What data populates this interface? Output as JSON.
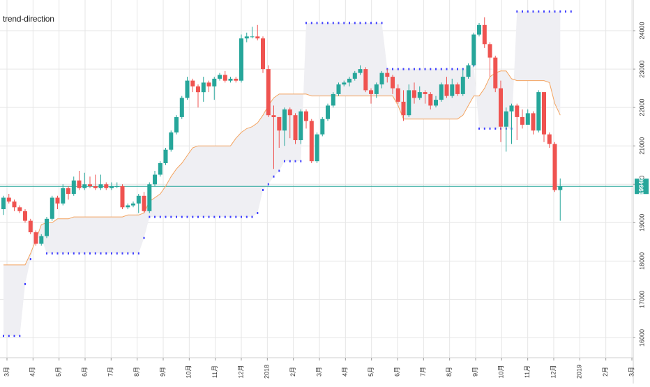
{
  "chart_data": {
    "type": "candlestick",
    "title": "trend-direction",
    "colors": {
      "up": "#26a69a",
      "down": "#ef5350",
      "trend_line": "#f4a460",
      "stop_dots": "#3d3dff",
      "band_fill": "#efeff3",
      "price_line": "#26a69a",
      "grid": "#e6e6e6"
    },
    "y_axis": {
      "ticks": [
        "16000",
        "17000",
        "18000",
        "19000",
        "20000",
        "21000",
        "22000",
        "23000",
        "24000"
      ],
      "range": [
        15500,
        24800
      ],
      "position": "right"
    },
    "x_axis": {
      "labels": [
        "3月",
        "4月",
        "5月",
        "6月",
        "7月",
        "8月",
        "9月",
        "10月",
        "11月",
        "12月",
        "2018",
        "2月",
        "3月",
        "4月",
        "5月",
        "6月",
        "7月",
        "8月",
        "9月",
        "10月",
        "11月",
        "12月",
        "2019",
        "2月",
        "3月"
      ]
    },
    "last_price": "19946",
    "last_price_value": 19946,
    "candles": [
      [
        19350,
        19650,
        19700,
        19200
      ],
      [
        19650,
        19550,
        19750,
        19500
      ],
      [
        19550,
        19400,
        19600,
        19300
      ],
      [
        19400,
        19300,
        19450,
        19250
      ],
      [
        19300,
        19050,
        19350,
        19000
      ],
      [
        19050,
        18750,
        19100,
        18700
      ],
      [
        18750,
        18450,
        18800,
        18400
      ],
      [
        18450,
        18650,
        18700,
        18400
      ],
      [
        18650,
        19100,
        19150,
        18600
      ],
      [
        19100,
        19650,
        19700,
        19050
      ],
      [
        19650,
        19500,
        19700,
        19350
      ],
      [
        19500,
        19900,
        20000,
        19450
      ],
      [
        19900,
        19750,
        19950,
        19600
      ],
      [
        19750,
        20100,
        20200,
        19700
      ],
      [
        20100,
        19900,
        20350,
        19850
      ],
      [
        19900,
        20000,
        20300,
        19850
      ],
      [
        20000,
        19950,
        20200,
        19900
      ],
      [
        19950,
        19900,
        20250,
        19850
      ],
      [
        19900,
        20000,
        20250,
        19850
      ],
      [
        20000,
        19900,
        20050,
        19850
      ],
      [
        19900,
        19950,
        20050,
        19850
      ],
      [
        19950,
        19950,
        20050,
        19900
      ],
      [
        19950,
        19400,
        20000,
        19350
      ],
      [
        19400,
        19450,
        19500,
        19350
      ],
      [
        19450,
        19500,
        19550,
        19400
      ],
      [
        19500,
        19700,
        19750,
        19250
      ],
      [
        19700,
        19300,
        19800,
        19250
      ],
      [
        19300,
        20000,
        20050,
        19250
      ],
      [
        20000,
        20250,
        20350,
        19950
      ],
      [
        20250,
        20550,
        20600,
        20200
      ],
      [
        20550,
        20900,
        20950,
        20500
      ],
      [
        20900,
        21350,
        21400,
        20850
      ],
      [
        21350,
        21750,
        21800,
        21300
      ],
      [
        21750,
        22250,
        22300,
        21700
      ],
      [
        22250,
        22700,
        22800,
        22200
      ],
      [
        22700,
        22550,
        22750,
        22400
      ],
      [
        22550,
        22400,
        22600,
        22000
      ],
      [
        22400,
        22650,
        22800,
        22150
      ],
      [
        22650,
        22550,
        22700,
        22400
      ],
      [
        22550,
        22750,
        22800,
        22200
      ],
      [
        22750,
        22850,
        22900,
        22700
      ],
      [
        22850,
        22700,
        22950,
        22650
      ],
      [
        22700,
        22750,
        22800,
        22650
      ],
      [
        22750,
        22700,
        22800,
        22650
      ],
      [
        22700,
        23800,
        23900,
        22650
      ],
      [
        23800,
        23850,
        23950,
        23700
      ],
      [
        23850,
        23850,
        24100,
        23800
      ],
      [
        23850,
        23800,
        24150,
        23750
      ],
      [
        23800,
        23000,
        23850,
        22900
      ],
      [
        23000,
        21800,
        23100,
        21750
      ],
      [
        21800,
        21750,
        22050,
        20400
      ],
      [
        21750,
        21400,
        21750,
        20950
      ],
      [
        21400,
        21950,
        22000,
        21000
      ],
      [
        21950,
        21800,
        22000,
        21200
      ],
      [
        21800,
        21150,
        21850,
        21050
      ],
      [
        21150,
        21900,
        21950,
        21050
      ],
      [
        21900,
        21650,
        21950,
        21450
      ],
      [
        21650,
        20600,
        21700,
        20550
      ],
      [
        20600,
        21300,
        21350,
        20550
      ],
      [
        21300,
        21700,
        21750,
        21250
      ],
      [
        21700,
        22050,
        22100,
        21650
      ],
      [
        22050,
        22350,
        22400,
        22000
      ],
      [
        22350,
        22600,
        22650,
        22300
      ],
      [
        22600,
        22650,
        22700,
        22550
      ],
      [
        22650,
        22750,
        22800,
        22550
      ],
      [
        22750,
        22900,
        22950,
        22700
      ],
      [
        22900,
        23000,
        23100,
        22850
      ],
      [
        23000,
        22450,
        23050,
        22400
      ],
      [
        22450,
        22350,
        22500,
        22100
      ],
      [
        22350,
        22600,
        22650,
        22250
      ],
      [
        22600,
        22900,
        22950,
        22500
      ],
      [
        22900,
        22800,
        23000,
        22650
      ],
      [
        22800,
        22500,
        22850,
        22350
      ],
      [
        22500,
        22150,
        22600,
        22100
      ],
      [
        22150,
        21800,
        22450,
        21650
      ],
      [
        21800,
        22450,
        22600,
        21750
      ],
      [
        22450,
        22250,
        22650,
        22100
      ],
      [
        22250,
        22400,
        22550,
        22200
      ],
      [
        22400,
        22350,
        22450,
        22100
      ],
      [
        22350,
        22050,
        22400,
        21950
      ],
      [
        22050,
        22200,
        22300,
        22000
      ],
      [
        22200,
        22600,
        22650,
        22150
      ],
      [
        22600,
        22300,
        22800,
        22250
      ],
      [
        22300,
        22600,
        22750,
        22250
      ],
      [
        22600,
        22350,
        22650,
        22300
      ],
      [
        22350,
        22800,
        23000,
        22300
      ],
      [
        22800,
        23100,
        23150,
        22750
      ],
      [
        23100,
        23900,
        23950,
        23050
      ],
      [
        23900,
        24150,
        24200,
        23850
      ],
      [
        24150,
        23650,
        24350,
        23550
      ],
      [
        23650,
        23300,
        23700,
        22800
      ],
      [
        23300,
        22500,
        23350,
        22400
      ],
      [
        22500,
        21500,
        22700,
        21100
      ],
      [
        21500,
        21900,
        22000,
        20850
      ],
      [
        21900,
        22050,
        22100,
        21050
      ],
      [
        22050,
        21750,
        22100,
        21150
      ],
      [
        21750,
        21550,
        21950,
        21450
      ],
      [
        21550,
        21850,
        21950,
        21700
      ],
      [
        21850,
        21400,
        21900,
        21300
      ],
      [
        21400,
        22400,
        22450,
        21350
      ],
      [
        22400,
        21300,
        22400,
        21100
      ],
      [
        21300,
        21050,
        21350,
        20950
      ],
      [
        21050,
        19850,
        21100,
        19800
      ],
      [
        19850,
        19946,
        20150,
        19050
      ]
    ],
    "trend_line": [
      17900,
      17900,
      17900,
      17900,
      17900,
      18200,
      18550,
      18950,
      19000,
      19000,
      19100,
      19100,
      19100,
      19150,
      19150,
      19150,
      19150,
      19150,
      19150,
      19150,
      19150,
      19150,
      19150,
      19200,
      19200,
      19200,
      19250,
      19550,
      19650,
      19750,
      19950,
      20200,
      20400,
      20550,
      20750,
      20950,
      21000,
      21000,
      21000,
      21000,
      21000,
      21000,
      21000,
      21200,
      21350,
      21450,
      21500,
      21600,
      21800,
      22050,
      22250,
      22350,
      22350,
      22350,
      22350,
      22350,
      22350,
      22300,
      22300,
      22300,
      22300,
      22300,
      22300,
      22300,
      22300,
      22300,
      22300,
      22300,
      22300,
      22300,
      22300,
      22300,
      22300,
      22050,
      21700,
      21700,
      21700,
      21700,
      21700,
      21700,
      21700,
      21700,
      21700,
      21700,
      21700,
      21800,
      22050,
      22300,
      22300,
      22500,
      22800,
      22900,
      22950,
      22950,
      22750,
      22700,
      22700,
      22700,
      22700,
      22700,
      22700,
      22650,
      22100,
      21800
    ],
    "stops": [
      16050,
      16050,
      16050,
      16050,
      17400,
      18050,
      18600,
      18600,
      18200,
      18200,
      18200,
      18200,
      18200,
      18200,
      18200,
      18200,
      18200,
      18200,
      18200,
      18200,
      18200,
      18200,
      18200,
      18200,
      18200,
      18200,
      18600,
      19150,
      19150,
      19150,
      19150,
      19150,
      19150,
      19150,
      19150,
      19150,
      19150,
      19150,
      19150,
      19150,
      19150,
      19150,
      19150,
      19150,
      19150,
      19150,
      19150,
      19250,
      19850,
      20000,
      20200,
      20350,
      20600,
      20600,
      20600,
      20600,
      24200,
      24200,
      24200,
      24200,
      24200,
      24200,
      24200,
      24200,
      24200,
      24200,
      24200,
      24200,
      24200,
      24200,
      24200,
      23000,
      23000,
      23000,
      23000,
      23000,
      23000,
      23000,
      23000,
      23000,
      23000,
      23000,
      23000,
      23000,
      23000,
      23000,
      23000,
      23100,
      21450,
      21450,
      21450,
      21450,
      21450,
      21450,
      21450,
      24500,
      24500,
      24500,
      24500,
      24500,
      24500,
      24500,
      24500,
      24500,
      24500,
      24500
    ]
  }
}
